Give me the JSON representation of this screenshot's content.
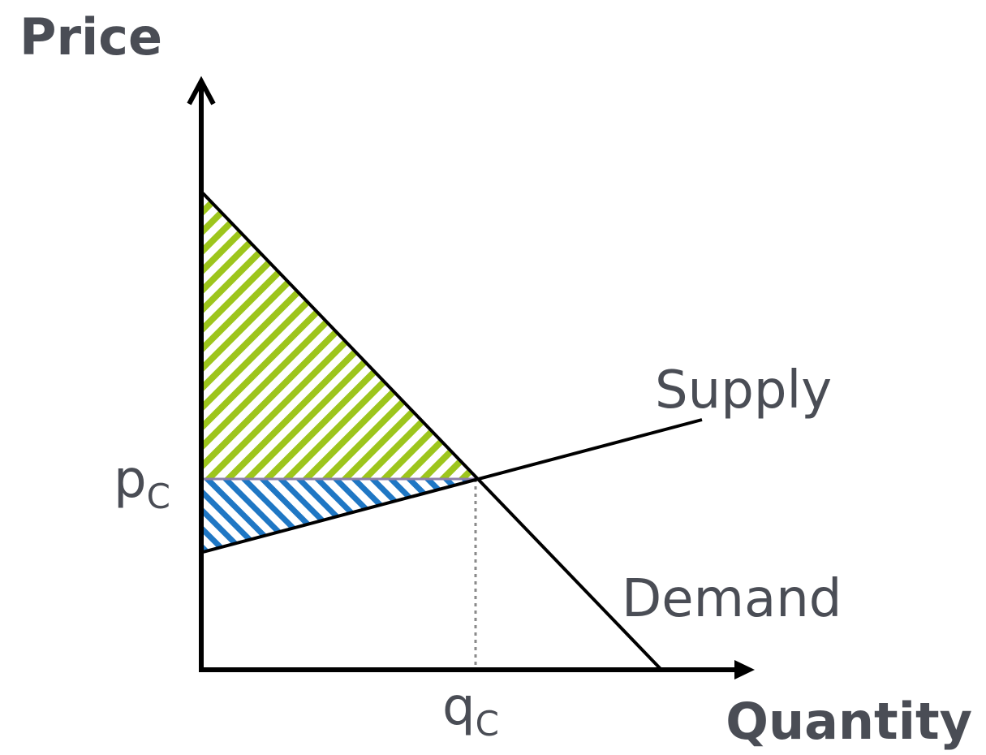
{
  "axes": {
    "y_title": "Price",
    "x_title": "Quantity"
  },
  "curves": {
    "supply_label": "Supply",
    "demand_label": "Demand"
  },
  "equilibrium": {
    "price_main": "p",
    "price_sub": "C",
    "quantity_main": "q",
    "quantity_sub": "C"
  },
  "colors": {
    "consumer_surplus": "#9dc51c",
    "producer_surplus": "#1f77c4",
    "axes": "#000000",
    "text": "#4a4d55",
    "guide_line": "#8a8a8a",
    "price_line": "#8c7fa8"
  }
}
